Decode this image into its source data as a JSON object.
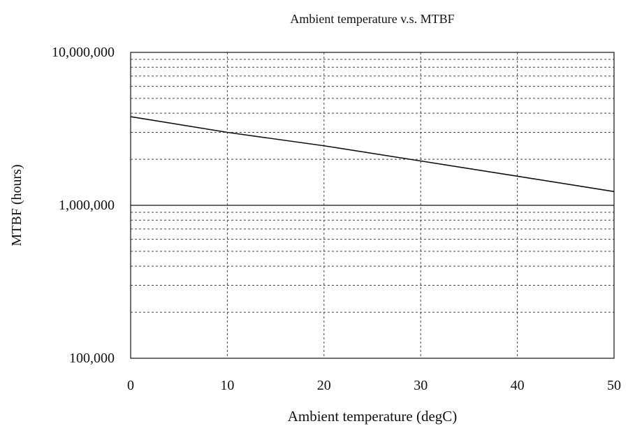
{
  "chart_data": {
    "type": "line",
    "title": "Ambient temperature v.s. MTBF",
    "xlabel": "Ambient temperature (degC)",
    "ylabel": "MTBF (hours)",
    "xlim": [
      0,
      50
    ],
    "ylim": [
      100000,
      10000000
    ],
    "y_scale": "log",
    "x_ticks": [
      0,
      10,
      20,
      30,
      40,
      50
    ],
    "x_tick_labels": [
      "0",
      "10",
      "20",
      "30",
      "40",
      "50"
    ],
    "y_major_ticks": [
      100000,
      1000000,
      10000000
    ],
    "y_tick_labels": [
      "100,000",
      "1,000,000",
      "10,000,000"
    ],
    "y_minor_ticks": [
      200000,
      300000,
      400000,
      500000,
      600000,
      700000,
      800000,
      900000,
      2000000,
      3000000,
      4000000,
      5000000,
      6000000,
      7000000,
      8000000,
      9000000
    ],
    "grid": true,
    "legend": "none",
    "series": [
      {
        "x": [
          0,
          10,
          20,
          30,
          40,
          50
        ],
        "y": [
          3800000,
          3000000,
          2450000,
          1950000,
          1550000,
          1230000
        ]
      }
    ],
    "colors": {
      "line": "#111111",
      "grid": "#444444",
      "axis": "#111111",
      "background": "#ffffff"
    }
  }
}
